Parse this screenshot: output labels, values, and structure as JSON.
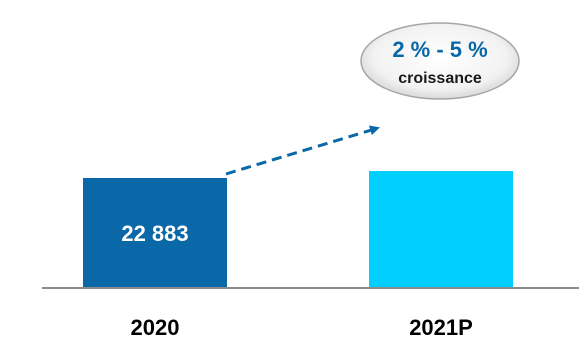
{
  "chart_data": {
    "type": "bar",
    "categories": [
      "2020",
      "2021P"
    ],
    "values": [
      22883,
      24330
    ],
    "data_labels": [
      "22 883",
      ""
    ],
    "colors": [
      "#0a67a8",
      "#00cfff"
    ],
    "label_color": "#ffffff",
    "annotation": {
      "line1": "2 % - 5 %",
      "line2": "croissance",
      "line1_color": "#0a67a8",
      "line2_color": "#1a1a1a",
      "arrow_color": "#0a67a8",
      "arrow_style": "dashed"
    },
    "grid": false,
    "legend": "none",
    "title": "",
    "xlabel": "",
    "ylabel": ""
  }
}
